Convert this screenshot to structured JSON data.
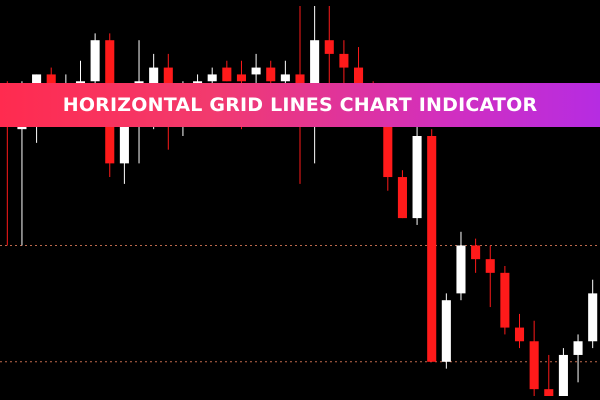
{
  "banner": {
    "title": "HORIZONTAL GRID LINES CHART INDICATOR"
  },
  "colors": {
    "background": "#000000",
    "bullish_candle": "#ffffff",
    "bearish_candle": "#ff1a1a",
    "grid_line": "#ff8c66",
    "banner_gradient_start": "#ff2b4f",
    "banner_gradient_end": "#b62ce2"
  },
  "chart_data": {
    "type": "candlestick",
    "grid": true,
    "grid_style": "dotted horizontal lines",
    "candles": [
      {
        "dir": "bear",
        "open": 30,
        "high": 34,
        "low": 10,
        "close": 29
      },
      {
        "dir": "bull",
        "open": 27,
        "high": 34,
        "low": 10,
        "close": 31
      },
      {
        "dir": "bull",
        "open": 31,
        "high": 35,
        "low": 25,
        "close": 35
      },
      {
        "dir": "bear",
        "open": 35,
        "high": 36,
        "low": 30,
        "close": 33
      },
      {
        "dir": "bull",
        "open": 33,
        "high": 35,
        "low": 29,
        "close": 33
      },
      {
        "dir": "bull",
        "open": 33,
        "high": 37,
        "low": 29,
        "close": 34
      },
      {
        "dir": "bull",
        "open": 34,
        "high": 41,
        "low": 31,
        "close": 40
      },
      {
        "dir": "bear",
        "open": 40,
        "high": 41,
        "low": 20,
        "close": 22
      },
      {
        "dir": "bull",
        "open": 22,
        "high": 33,
        "low": 19,
        "close": 31
      },
      {
        "dir": "bull",
        "open": 31,
        "high": 40,
        "low": 22,
        "close": 34
      },
      {
        "dir": "bull",
        "open": 33,
        "high": 38,
        "low": 27,
        "close": 36
      },
      {
        "dir": "bear",
        "open": 36,
        "high": 38,
        "low": 24,
        "close": 33
      },
      {
        "dir": "bull",
        "open": 33,
        "high": 34,
        "low": 26,
        "close": 33
      },
      {
        "dir": "bull",
        "open": 33,
        "high": 35,
        "low": 30,
        "close": 34
      },
      {
        "dir": "bull",
        "open": 34,
        "high": 36,
        "low": 29,
        "close": 35
      },
      {
        "dir": "bear",
        "open": 36,
        "high": 37,
        "low": 34,
        "close": 34
      },
      {
        "dir": "bear",
        "open": 35,
        "high": 37,
        "low": 27,
        "close": 34
      },
      {
        "dir": "bull",
        "open": 35,
        "high": 38,
        "low": 32,
        "close": 36
      },
      {
        "dir": "bear",
        "open": 36,
        "high": 37,
        "low": 31,
        "close": 34
      },
      {
        "dir": "bull",
        "open": 34,
        "high": 37,
        "low": 33,
        "close": 35
      },
      {
        "dir": "bear",
        "open": 35,
        "high": 45,
        "low": 19,
        "close": 32
      },
      {
        "dir": "bull",
        "open": 32,
        "high": 45,
        "low": 22,
        "close": 40
      },
      {
        "dir": "bear",
        "open": 40,
        "high": 45,
        "low": 33,
        "close": 38
      },
      {
        "dir": "bear",
        "open": 38,
        "high": 40,
        "low": 32,
        "close": 36
      },
      {
        "dir": "bear",
        "open": 36,
        "high": 39,
        "low": 31,
        "close": 33
      },
      {
        "dir": "bear",
        "open": 33,
        "high": 34,
        "low": 29,
        "close": 30
      },
      {
        "dir": "bear",
        "open": 30,
        "high": 31,
        "low": 18,
        "close": 20
      },
      {
        "dir": "bear",
        "open": 20,
        "high": 21,
        "low": 14,
        "close": 14
      },
      {
        "dir": "bull",
        "open": 14,
        "high": 28,
        "low": 13,
        "close": 26
      },
      {
        "dir": "bear",
        "open": 26,
        "high": 27,
        "low": -7,
        "close": -7
      },
      {
        "dir": "bull",
        "open": -7,
        "high": 3,
        "low": -8,
        "close": 2
      },
      {
        "dir": "bull",
        "open": 3,
        "high": 12,
        "low": 2,
        "close": 10
      },
      {
        "dir": "bear",
        "open": 10,
        "high": 11,
        "low": 6,
        "close": 8
      },
      {
        "dir": "bear",
        "open": 8,
        "high": 10,
        "low": 1,
        "close": 6
      },
      {
        "dir": "bear",
        "open": 6,
        "high": 7,
        "low": -3,
        "close": -2
      },
      {
        "dir": "bear",
        "open": -2,
        "high": 0,
        "low": -5,
        "close": -4
      },
      {
        "dir": "bear",
        "open": -4,
        "high": -1,
        "low": -12,
        "close": -11
      },
      {
        "dir": "bear",
        "open": -11,
        "high": -6,
        "low": -12,
        "close": -12
      },
      {
        "dir": "bull",
        "open": -12,
        "high": -5,
        "low": -12,
        "close": -6
      },
      {
        "dir": "bull",
        "open": -6,
        "high": -3,
        "low": -10,
        "close": -4
      },
      {
        "dir": "bull",
        "open": -4,
        "high": 5,
        "low": -5,
        "close": 3
      }
    ],
    "grid_levels": [
      10,
      -7
    ],
    "ylim": [
      -12,
      45
    ]
  }
}
